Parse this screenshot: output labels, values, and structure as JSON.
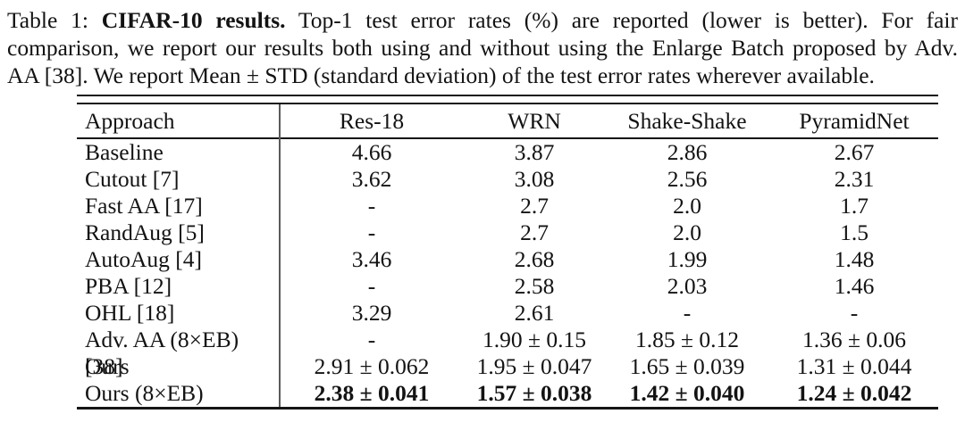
{
  "caption": {
    "prefix": "Table 1:",
    "title_bold": "CIFAR-10 results.",
    "line1_rest": "Top-1 test error rates (%) are reported (lower is better). For fair",
    "line2": "comparison, we report our results both using and without using the Enlarge Batch proposed by Adv.",
    "line3": "AA [38]. We report Mean ± STD (standard deviation) of the test error rates wherever available."
  },
  "table": {
    "columns": [
      "Approach",
      "Res-18",
      "WRN",
      "Shake-Shake",
      "PyramidNet"
    ],
    "rows": [
      {
        "approach": "Baseline",
        "values": [
          "4.66",
          "3.87",
          "2.86",
          "2.67"
        ],
        "bold": false
      },
      {
        "approach": "Cutout [7]",
        "values": [
          "3.62",
          "3.08",
          "2.56",
          "2.31"
        ],
        "bold": false
      },
      {
        "approach": "Fast AA [17]",
        "values": [
          "-",
          "2.7",
          "2.0",
          "1.7"
        ],
        "bold": false
      },
      {
        "approach": "RandAug [5]",
        "values": [
          "-",
          "2.7",
          "2.0",
          "1.5"
        ],
        "bold": false
      },
      {
        "approach": "AutoAug [4]",
        "values": [
          "3.46",
          "2.68",
          "1.99",
          "1.48"
        ],
        "bold": false
      },
      {
        "approach": "PBA [12]",
        "values": [
          "-",
          "2.58",
          "2.03",
          "1.46"
        ],
        "bold": false
      },
      {
        "approach": "OHL [18]",
        "values": [
          "3.29",
          "2.61",
          "-",
          "-"
        ],
        "bold": false
      },
      {
        "approach": "Adv. AA (8×EB) [38]",
        "values": [
          "-",
          "1.90 ± 0.15",
          "1.85 ± 0.12",
          "1.36 ± 0.06"
        ],
        "bold": false
      },
      {
        "approach": "Ours",
        "values": [
          "2.91 ± 0.062",
          "1.95 ± 0.047",
          "1.65 ± 0.039",
          "1.31 ± 0.044"
        ],
        "bold": false
      },
      {
        "approach": "Ours (8×EB)",
        "values": [
          "2.38 ± 0.041",
          "1.57 ± 0.038",
          "1.42 ± 0.040",
          "1.24 ± 0.042"
        ],
        "bold": true
      }
    ]
  }
}
